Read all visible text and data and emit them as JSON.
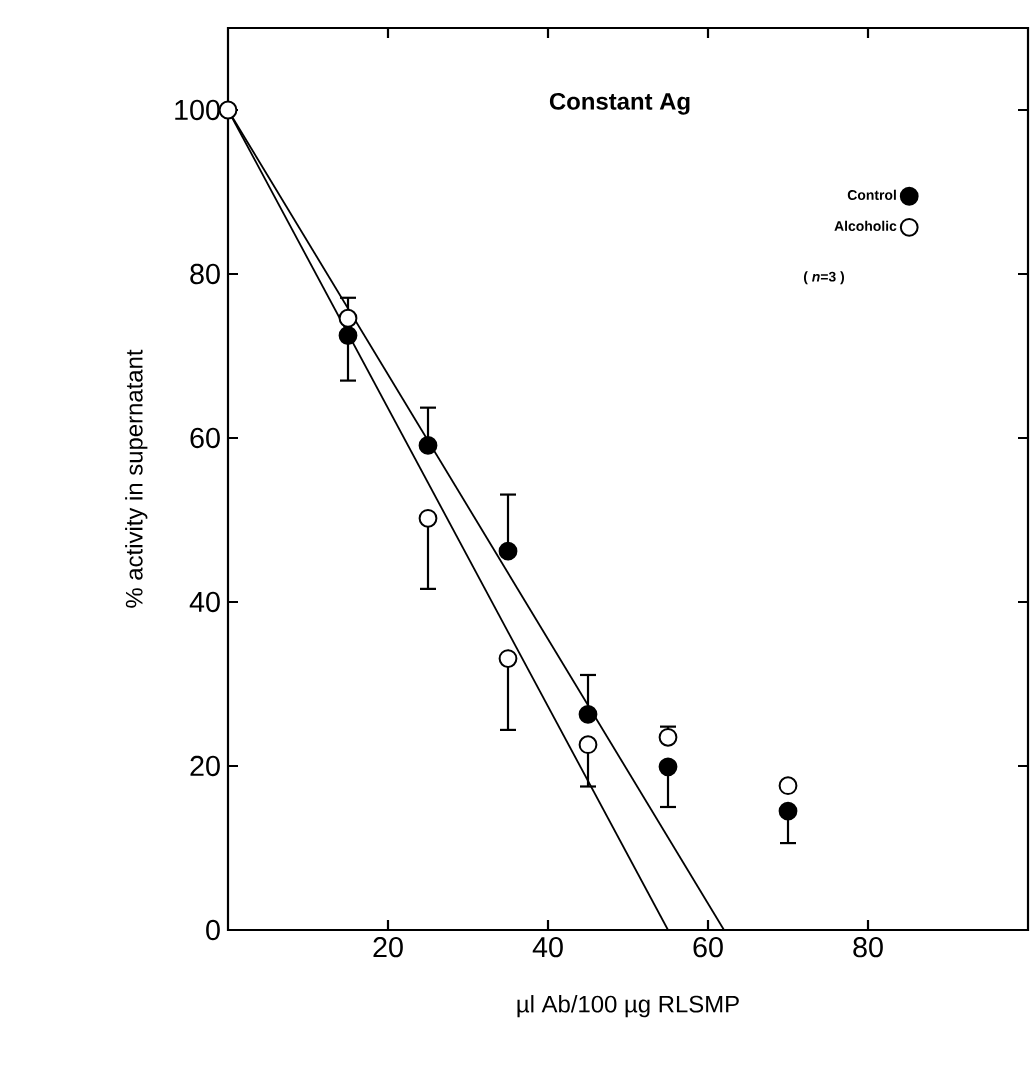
{
  "chart_data": {
    "type": "scatter",
    "title": "Constant Ag",
    "xlabel": "µl Ab/100 µg RLSMP",
    "ylabel": "% activity in supernatant",
    "x": [
      0,
      15,
      25,
      35,
      45,
      55,
      70
    ],
    "series": [
      {
        "name": "Control",
        "color": "#000000",
        "marker": "circle",
        "values": [
          null,
          72.5,
          59.1,
          46.2,
          26.3,
          19.9,
          14.5
        ],
        "errors": [
          null,
          [
            67,
            72.5
          ],
          [
            59.1,
            63.7
          ],
          [
            46.2,
            53.1
          ],
          [
            26.3,
            31.1
          ],
          [
            15,
            19.9
          ],
          [
            10.6,
            14.5
          ]
        ]
      },
      {
        "name": "Alcoholic",
        "color": "#000000",
        "marker": "circle",
        "values": [
          100,
          74.6,
          50.2,
          33.1,
          22.6,
          23.5,
          17.6
        ],
        "errors": [
          null,
          [
            74.6,
            77.1
          ],
          [
            41.6,
            50.2
          ],
          [
            24.4,
            33.1
          ],
          [
            17.5,
            22.6
          ],
          [
            23.5,
            24.8
          ],
          null
        ]
      },
      {
        "type": "line",
        "marker": "none",
        "color": "#000000",
        "x": [
          0,
          62
        ],
        "values": [
          100,
          0
        ]
      },
      {
        "type": "line",
        "marker": "none",
        "color": "#000000",
        "x": [
          0,
          55
        ],
        "values": [
          100,
          0
        ]
      }
    ],
    "annotations": [
      "( *n*=3 )"
    ],
    "xlim": [
      0,
      100
    ],
    "ylim": [
      0,
      110
    ],
    "xticks": [
      20,
      40,
      60,
      80
    ],
    "yticks": [
      0,
      20,
      40,
      60,
      80,
      100
    ],
    "line_style": "solid",
    "legend": "top right",
    "grid": false
  }
}
